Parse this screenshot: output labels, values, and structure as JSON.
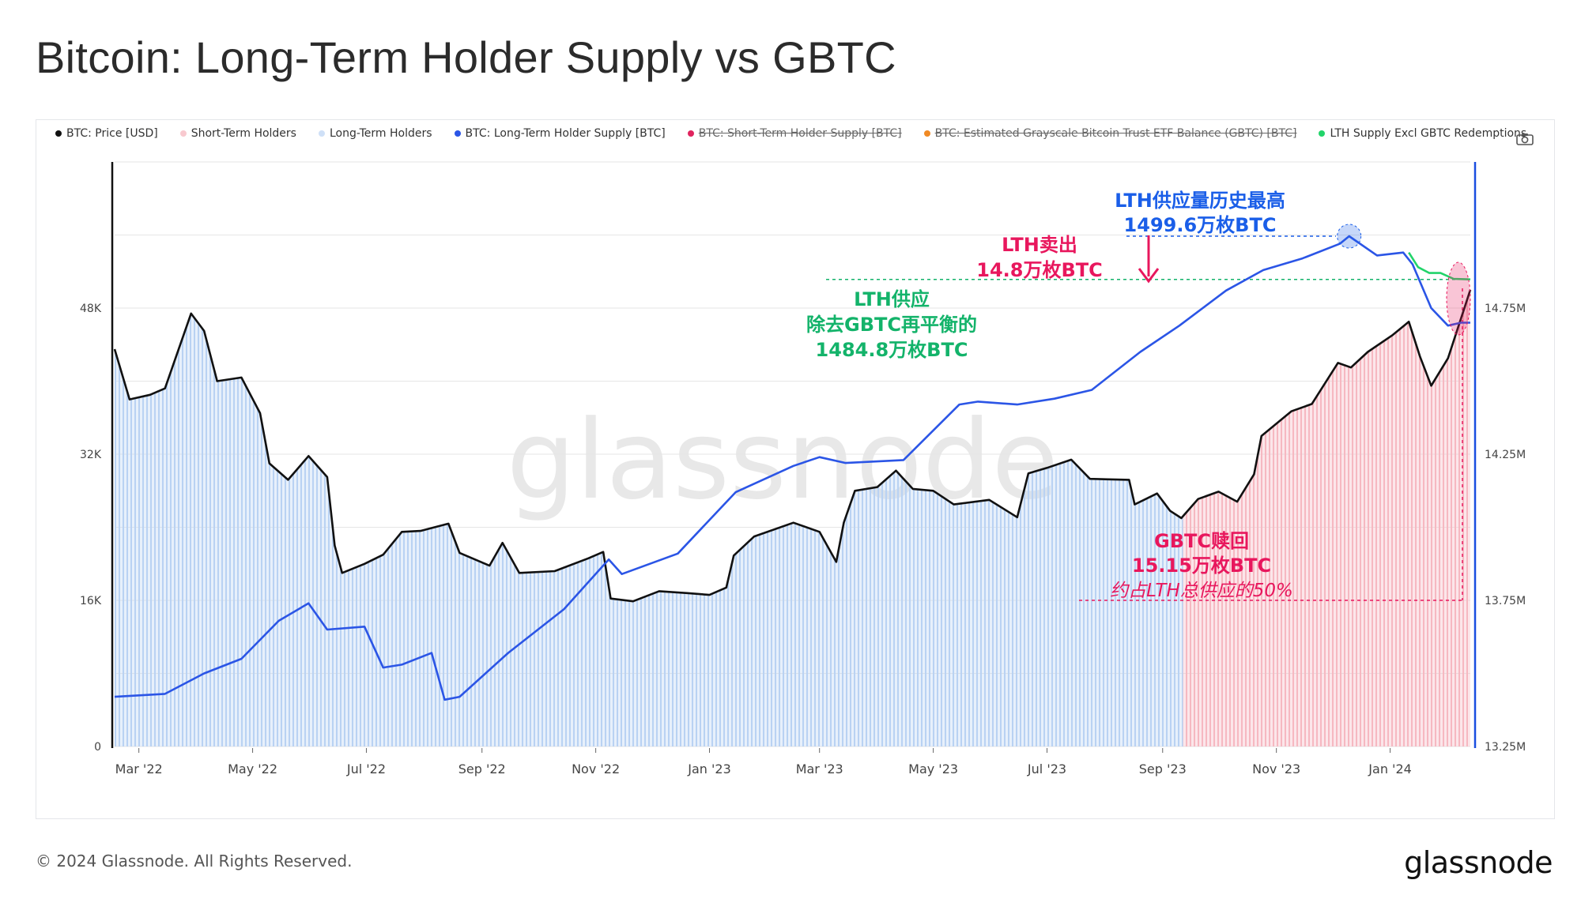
{
  "title": "Bitcoin: Long-Term Holder Supply vs GBTC",
  "legend": [
    {
      "label": "BTC: Price [USD]",
      "color": "#111111",
      "enabled": true
    },
    {
      "label": "Short-Term Holders",
      "color": "#f8c9cf",
      "enabled": true
    },
    {
      "label": "Long-Term Holders",
      "color": "#cfe0f7",
      "enabled": true
    },
    {
      "label": "BTC: Long-Term Holder Supply [BTC]",
      "color": "#2b55e6",
      "enabled": true
    },
    {
      "label": "BTC: Short-Term Holder Supply [BTC]",
      "color": "#e0245e",
      "enabled": false
    },
    {
      "label": "BTC: Estimated Grayscale Bitcoin Trust ETF Balance (GBTC) [BTC]",
      "color": "#f08a24",
      "enabled": false
    },
    {
      "label": "LTH Supply Excl GBTC Redemptions",
      "color": "#22d46a",
      "enabled": true
    }
  ],
  "watermark": "glassnode",
  "footer": {
    "copyright": "© 2024 Glassnode. All Rights Reserved.",
    "logo": "glassnode"
  },
  "icons": {
    "camera": "camera-icon"
  },
  "annotations": {
    "ath": {
      "line1": "LTH供应量历史最高",
      "line2": "1499.6万枚BTC",
      "color": "#1a5ee8"
    },
    "sold": {
      "line1": "LTH卖出",
      "line2": "14.8万枚BTC",
      "color": "#e8175d"
    },
    "excl": {
      "line1": "LTH供应",
      "line2": "除去GBTC再平衡的",
      "line3": "1484.8万枚BTC",
      "color": "#13b36a"
    },
    "gbtc": {
      "line1": "GBTC赎回",
      "line2": "15.15万枚BTC",
      "line3": "约占LTH总供应的50%",
      "color": "#e8175d"
    }
  },
  "chart_data": {
    "type": "line",
    "x_ticks": [
      "Mar '22",
      "May '22",
      "Jul '22",
      "Sep '22",
      "Nov '22",
      "Jan '23",
      "Mar '23",
      "May '23",
      "Jul '23",
      "Sep '23",
      "Nov '23",
      "Jan '24"
    ],
    "y_left": {
      "ticks": [
        "0",
        "16K",
        "32K",
        "48K"
      ],
      "ylim": [
        0,
        64000
      ]
    },
    "y_right": {
      "ticks": [
        "13.25M",
        "13.75M",
        "14.25M",
        "14.75M"
      ],
      "ylim": [
        13250000,
        15250000
      ]
    },
    "grid": true,
    "legend_position": "top",
    "series": [
      {
        "name": "BTC: Price [USD]",
        "axis": "left",
        "color": "#111111",
        "points": [
          [
            "2022-02-16",
            43500
          ],
          [
            "2022-02-24",
            38000
          ],
          [
            "2022-03-07",
            38500
          ],
          [
            "2022-03-15",
            39200
          ],
          [
            "2022-03-29",
            47400
          ],
          [
            "2022-04-05",
            45500
          ],
          [
            "2022-04-12",
            40000
          ],
          [
            "2022-04-25",
            40400
          ],
          [
            "2022-05-05",
            36500
          ],
          [
            "2022-05-10",
            31000
          ],
          [
            "2022-05-20",
            29200
          ],
          [
            "2022-05-31",
            31800
          ],
          [
            "2022-06-10",
            29500
          ],
          [
            "2022-06-14",
            22000
          ],
          [
            "2022-06-18",
            19000
          ],
          [
            "2022-06-30",
            20000
          ],
          [
            "2022-07-10",
            21000
          ],
          [
            "2022-07-20",
            23500
          ],
          [
            "2022-07-30",
            23600
          ],
          [
            "2022-08-14",
            24400
          ],
          [
            "2022-08-20",
            21200
          ],
          [
            "2022-09-05",
            19800
          ],
          [
            "2022-09-12",
            22300
          ],
          [
            "2022-09-21",
            19000
          ],
          [
            "2022-10-10",
            19200
          ],
          [
            "2022-10-28",
            20600
          ],
          [
            "2022-11-05",
            21300
          ],
          [
            "2022-11-09",
            16200
          ],
          [
            "2022-11-21",
            15900
          ],
          [
            "2022-12-05",
            17000
          ],
          [
            "2022-12-20",
            16800
          ],
          [
            "2023-01-01",
            16600
          ],
          [
            "2023-01-10",
            17400
          ],
          [
            "2023-01-14",
            20900
          ],
          [
            "2023-01-25",
            23000
          ],
          [
            "2023-02-15",
            24500
          ],
          [
            "2023-03-01",
            23500
          ],
          [
            "2023-03-10",
            20200
          ],
          [
            "2023-03-14",
            24500
          ],
          [
            "2023-03-20",
            28000
          ],
          [
            "2023-04-01",
            28400
          ],
          [
            "2023-04-11",
            30200
          ],
          [
            "2023-04-20",
            28200
          ],
          [
            "2023-05-01",
            28000
          ],
          [
            "2023-05-12",
            26500
          ],
          [
            "2023-05-31",
            27000
          ],
          [
            "2023-06-15",
            25100
          ],
          [
            "2023-06-21",
            29900
          ],
          [
            "2023-07-01",
            30500
          ],
          [
            "2023-07-14",
            31400
          ],
          [
            "2023-07-24",
            29300
          ],
          [
            "2023-08-14",
            29200
          ],
          [
            "2023-08-17",
            26500
          ],
          [
            "2023-08-29",
            27700
          ],
          [
            "2023-09-05",
            25800
          ],
          [
            "2023-09-11",
            25000
          ],
          [
            "2023-09-20",
            27100
          ],
          [
            "2023-10-01",
            27900
          ],
          [
            "2023-10-11",
            26800
          ],
          [
            "2023-10-20",
            29800
          ],
          [
            "2023-10-24",
            34000
          ],
          [
            "2023-11-09",
            36700
          ],
          [
            "2023-11-20",
            37500
          ],
          [
            "2023-12-04",
            42000
          ],
          [
            "2023-12-11",
            41500
          ],
          [
            "2023-12-20",
            43200
          ],
          [
            "2024-01-02",
            45000
          ],
          [
            "2024-01-11",
            46500
          ],
          [
            "2024-01-17",
            42700
          ],
          [
            "2024-01-23",
            39500
          ],
          [
            "2024-02-01",
            42500
          ],
          [
            "2024-02-09",
            47500
          ],
          [
            "2024-02-13",
            50000
          ]
        ]
      },
      {
        "name": "BTC: Long-Term Holder Supply [BTC]",
        "axis": "right",
        "color": "#2b55e6",
        "points": [
          [
            "2022-02-16",
            13420000
          ],
          [
            "2022-03-15",
            13430000
          ],
          [
            "2022-04-05",
            13500000
          ],
          [
            "2022-04-25",
            13550000
          ],
          [
            "2022-05-15",
            13680000
          ],
          [
            "2022-05-31",
            13740000
          ],
          [
            "2022-06-10",
            13650000
          ],
          [
            "2022-06-30",
            13660000
          ],
          [
            "2022-07-10",
            13520000
          ],
          [
            "2022-07-20",
            13530000
          ],
          [
            "2022-08-05",
            13570000
          ],
          [
            "2022-08-12",
            13410000
          ],
          [
            "2022-08-20",
            13420000
          ],
          [
            "2022-09-15",
            13570000
          ],
          [
            "2022-10-15",
            13720000
          ],
          [
            "2022-11-08",
            13890000
          ],
          [
            "2022-11-15",
            13840000
          ],
          [
            "2022-12-15",
            13910000
          ],
          [
            "2023-01-15",
            14120000
          ],
          [
            "2023-02-15",
            14210000
          ],
          [
            "2023-03-01",
            14240000
          ],
          [
            "2023-03-15",
            14220000
          ],
          [
            "2023-04-15",
            14230000
          ],
          [
            "2023-05-15",
            14420000
          ],
          [
            "2023-05-25",
            14430000
          ],
          [
            "2023-06-15",
            14420000
          ],
          [
            "2023-07-05",
            14440000
          ],
          [
            "2023-07-25",
            14470000
          ],
          [
            "2023-08-20",
            14600000
          ],
          [
            "2023-09-10",
            14690000
          ],
          [
            "2023-10-05",
            14810000
          ],
          [
            "2023-10-25",
            14880000
          ],
          [
            "2023-11-15",
            14920000
          ],
          [
            "2023-12-05",
            14970000
          ],
          [
            "2023-12-10",
            14996000
          ],
          [
            "2023-12-25",
            14930000
          ],
          [
            "2024-01-08",
            14940000
          ],
          [
            "2024-01-13",
            14900000
          ],
          [
            "2024-01-23",
            14750000
          ],
          [
            "2024-02-01",
            14690000
          ],
          [
            "2024-02-08",
            14700000
          ],
          [
            "2024-02-13",
            14700000
          ]
        ]
      },
      {
        "name": "LTH Supply Excl GBTC Redemptions",
        "axis": "right",
        "color": "#22d46a",
        "points": [
          [
            "2024-01-11",
            14940000
          ],
          [
            "2024-01-16",
            14890000
          ],
          [
            "2024-01-22",
            14870000
          ],
          [
            "2024-01-28",
            14870000
          ],
          [
            "2024-02-04",
            14850000
          ],
          [
            "2024-02-13",
            14848000
          ]
        ]
      }
    ],
    "areas": [
      {
        "name": "Long-Term Holders",
        "from": "2022-02-16",
        "to": "2023-09-12",
        "color": "#cfe0f7"
      },
      {
        "name": "Short-Term Holders",
        "from": "2023-09-12",
        "to": "2024-02-13",
        "color": "#f8c9cf"
      }
    ],
    "reference_values": {
      "lth_ath": 14996000,
      "lth_excl_gbtc": 14848000,
      "gbtc_ref": 13750000
    }
  }
}
